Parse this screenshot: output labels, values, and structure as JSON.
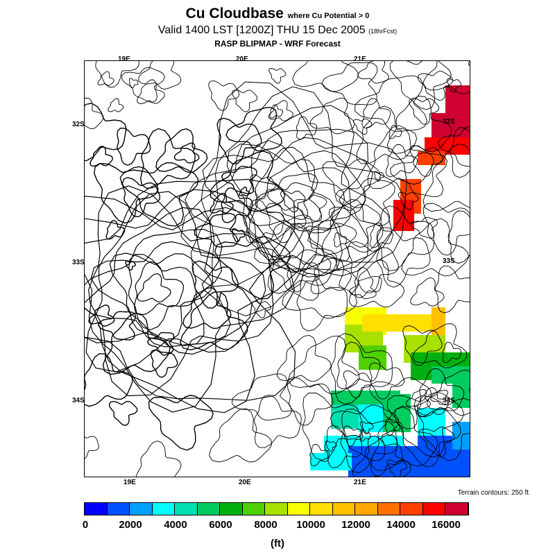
{
  "header": {
    "title": "Cu Cloudbase",
    "title_note": "where Cu Potential > 0",
    "valid": "Valid 1400 LST [1200Z] THU 15 Dec 2005",
    "valid_note": "(18hrFcst)",
    "subtitle": "RASP BLIPMAP - WRF Forecast"
  },
  "map": {
    "lon_labels_top": [
      "19E",
      "20E",
      "21E"
    ],
    "lon_labels_bottom": [
      "19E",
      "20E",
      "21E"
    ],
    "lat_labels_left": [
      "32S",
      "33S",
      "34S"
    ],
    "lat_labels_right": [
      "32S",
      "33S",
      "34S"
    ],
    "terrain_note": "Terrain contours: 250 ft"
  },
  "colorbar": {
    "colors": [
      "#0000ff",
      "#0050ff",
      "#00a0ff",
      "#00ffff",
      "#00e0b0",
      "#00cc60",
      "#00b010",
      "#50d000",
      "#a8e000",
      "#f8ff00",
      "#ffe000",
      "#ffc000",
      "#ffa800",
      "#ff7000",
      "#ff4000",
      "#ff0000",
      "#d00030"
    ],
    "tick_labels": [
      "0",
      "2000",
      "4000",
      "6000",
      "8000",
      "10000",
      "12000",
      "14000",
      "16000"
    ],
    "unit": "(ft)"
  }
}
